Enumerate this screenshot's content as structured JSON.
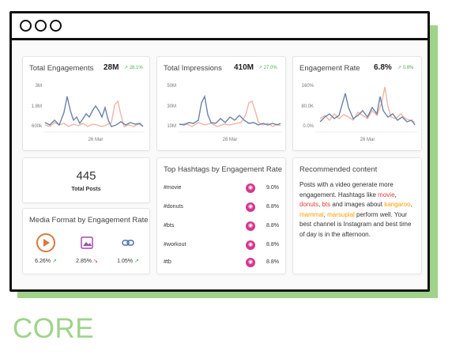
{
  "window": {
    "titlebar_dots": 3
  },
  "cards": {
    "engagements": {
      "title": "Total Engagements",
      "value": "28M",
      "trend": "28.1%",
      "yticks": [
        "3M",
        "1.8M",
        "600k"
      ],
      "xlabel": "26 Mar"
    },
    "impressions": {
      "title": "Total Impressions",
      "value": "410M",
      "trend": "27.0%",
      "yticks": [
        "50M",
        "30M",
        "10M"
      ],
      "xlabel": "26 Mar"
    },
    "rate": {
      "title": "Engagement Rate",
      "value": "6.8%",
      "trend": "0.8%",
      "yticks": [
        "160%",
        "80.0K",
        "0.0%"
      ],
      "xlabel": "26 Mar"
    },
    "posts": {
      "value": "445",
      "label": "Total Posts"
    },
    "media": {
      "title": "Media Format by Engagement Rate",
      "items": [
        {
          "icon": "play-icon",
          "value": "6.26%",
          "trend": "up"
        },
        {
          "icon": "image-icon",
          "value": "2.85%",
          "trend": "down"
        },
        {
          "icon": "link-icon",
          "value": "1.05%",
          "trend": "up"
        }
      ]
    },
    "hashtags": {
      "title": "Top Hashtags by Engagement Rate",
      "rows": [
        {
          "tag": "#movie",
          "value": "9.0%"
        },
        {
          "tag": "#donuts",
          "value": "8.8%"
        },
        {
          "tag": "#bts",
          "value": "8.8%"
        },
        {
          "tag": "#workout",
          "value": "8.8%"
        },
        {
          "tag": "#tb",
          "value": "8.8%"
        }
      ]
    },
    "recommended": {
      "title": "Recommended content",
      "t1": "Posts with a video generate more engagement. Hashtags like ",
      "h1": "movie",
      "t2": ", ",
      "h2": "donuts",
      "t3": ", ",
      "h3": "bts",
      "t4": " and images about ",
      "k1": "kangaroo",
      "t5": ", ",
      "k2": "mammal",
      "t6": ", ",
      "k3": "marsupial",
      "t7": " perform well. Your best channel is Instagram and best time of day is in the afternoon."
    }
  },
  "colors": {
    "blue_line": "#6a83a9",
    "pink_line": "#eeb5a3",
    "accent_green": "#9fd38a",
    "hashtag_icon": "#d6378e",
    "trend_up": "#4caf50",
    "trend_down": "#e53935"
  },
  "footer": {
    "label": "CORE"
  }
}
